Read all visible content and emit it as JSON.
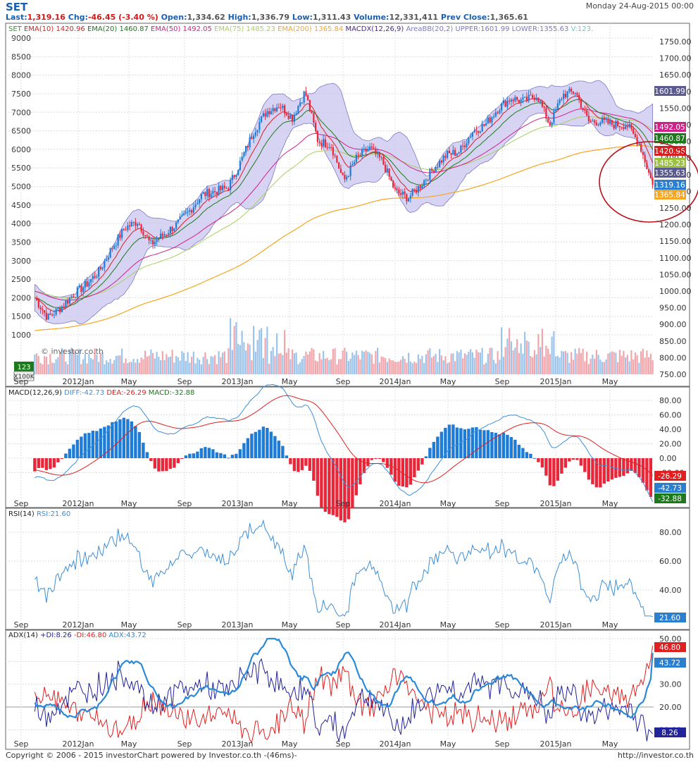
{
  "header": {
    "symbol": "SET",
    "date": "Monday 24-Aug-2015 00:00",
    "stats_text": "Last:1,319.16 Chg:-46.45 (-3.40 %)  Open:1,334.62  High:1,336.79  Low:1,311.43  Volume:12,331,411  Prev Close:1,365.61",
    "last": "1,319.16",
    "chg": "-46.45 (-3.40 %)",
    "open": "1,334.62",
    "high": "1,336.79",
    "low": "1,311.43",
    "volume": "12,331,411",
    "prev_close": "1,365.61"
  },
  "footer": {
    "left": "Copyright © 2006 - 2015 investorChart powered by Investor.co.th -(46ms)-",
    "right": "http://investor.co.th"
  },
  "watermark": "© investor.co.th",
  "colors": {
    "up": "#1e7bd6",
    "down": "#e8283a",
    "ema10": "#d82020",
    "ema20": "#1c7a1c",
    "ema50": "#d0208a",
    "ema75": "#a8d060",
    "ema200": "#f5a623",
    "bb_fill": "#c9c6ef",
    "bb_line": "#7c78c8",
    "rsi": "#3d8fd6",
    "adx": "#2b8ad8",
    "plusdi": "#23239a",
    "minusdi": "#e02020"
  },
  "chart_data": [
    {
      "type": "candlestick",
      "title": "SET",
      "legend": [
        {
          "label": "SET",
          "color": "#2e9a2e"
        },
        {
          "label": "EMA(10) 1420.96",
          "color": "#d82020"
        },
        {
          "label": "EMA(20) 1460.87",
          "color": "#1c7a1c"
        },
        {
          "label": "EMA(50) 1492.05",
          "color": "#d0208a"
        },
        {
          "label": "EMA(75) 1485.23",
          "color": "#a8d060"
        },
        {
          "label": "EMA(200) 1365.84",
          "color": "#f5a623"
        },
        {
          "label": "MACDX(12,26,9)",
          "color": "#4a2a8a"
        },
        {
          "label": "AreaBB(20,2) UPPER:1601.99 LOWER:1355.63",
          "color": "#7c78c8"
        },
        {
          "label": "V:123.",
          "color": "#7cc0c0"
        }
      ],
      "x_ticks": [
        "Sep",
        "2012Jan",
        "May",
        "Sep",
        "2013Jan",
        "May",
        "Sep",
        "2014Jan",
        "May",
        "Sep",
        "2015Jan",
        "May"
      ],
      "y_right_ticks": [
        750,
        800,
        850,
        900,
        950,
        1000,
        1050,
        1100,
        1150,
        1200,
        1250,
        1300,
        1350,
        1400,
        1450,
        1500,
        1550,
        1600,
        1650,
        1700,
        1750
      ],
      "y_left_volume_ticks": [
        1000,
        1500,
        2000,
        2500,
        3000,
        3500,
        4000,
        4500,
        5000,
        5500,
        6000,
        6500,
        7000,
        7500,
        8000,
        8500,
        9000
      ],
      "volume_unit": "X100K",
      "volume_last": "123",
      "close_series_approx": [
        {
          "x": "2011-08",
          "y": 980
        },
        {
          "x": "2011-09",
          "y": 920
        },
        {
          "x": "2011-10",
          "y": 950
        },
        {
          "x": "2011-11",
          "y": 990
        },
        {
          "x": "2011-12",
          "y": 1020
        },
        {
          "x": "2012-01",
          "y": 1060
        },
        {
          "x": "2012-02",
          "y": 1130
        },
        {
          "x": "2012-03",
          "y": 1190
        },
        {
          "x": "2012-04",
          "y": 1210
        },
        {
          "x": "2012-05",
          "y": 1140
        },
        {
          "x": "2012-06",
          "y": 1170
        },
        {
          "x": "2012-07",
          "y": 1200
        },
        {
          "x": "2012-08",
          "y": 1240
        },
        {
          "x": "2012-09",
          "y": 1290
        },
        {
          "x": "2012-10",
          "y": 1300
        },
        {
          "x": "2012-11",
          "y": 1310
        },
        {
          "x": "2012-12",
          "y": 1390
        },
        {
          "x": "2013-01",
          "y": 1480
        },
        {
          "x": "2013-02",
          "y": 1540
        },
        {
          "x": "2013-03",
          "y": 1560
        },
        {
          "x": "2013-04",
          "y": 1520
        },
        {
          "x": "2013-05",
          "y": 1600
        },
        {
          "x": "2013-06",
          "y": 1450
        },
        {
          "x": "2013-07",
          "y": 1440
        },
        {
          "x": "2013-08",
          "y": 1330
        },
        {
          "x": "2013-09",
          "y": 1400
        },
        {
          "x": "2013-10",
          "y": 1430
        },
        {
          "x": "2013-11",
          "y": 1390
        },
        {
          "x": "2013-12",
          "y": 1300
        },
        {
          "x": "2014-01",
          "y": 1280
        },
        {
          "x": "2014-02",
          "y": 1320
        },
        {
          "x": "2014-03",
          "y": 1370
        },
        {
          "x": "2014-04",
          "y": 1410
        },
        {
          "x": "2014-05",
          "y": 1420
        },
        {
          "x": "2014-06",
          "y": 1480
        },
        {
          "x": "2014-07",
          "y": 1500
        },
        {
          "x": "2014-08",
          "y": 1550
        },
        {
          "x": "2014-09",
          "y": 1580
        },
        {
          "x": "2014-10",
          "y": 1570
        },
        {
          "x": "2014-11",
          "y": 1590
        },
        {
          "x": "2014-12",
          "y": 1500
        },
        {
          "x": "2015-01",
          "y": 1590
        },
        {
          "x": "2015-02",
          "y": 1600
        },
        {
          "x": "2015-03",
          "y": 1510
        },
        {
          "x": "2015-04",
          "y": 1510
        },
        {
          "x": "2015-05",
          "y": 1500
        },
        {
          "x": "2015-06",
          "y": 1500
        },
        {
          "x": "2015-07",
          "y": 1440
        },
        {
          "x": "2015-08",
          "y": 1319
        }
      ],
      "price_tags": [
        {
          "value": "1601.99",
          "color": "#5b5b8f"
        },
        {
          "value": "1492.05",
          "color": "#d0208a"
        },
        {
          "value": "1460.87",
          "color": "#1c7a1c"
        },
        {
          "value": "1420.96",
          "color": "#d82020"
        },
        {
          "value": "1485.23",
          "color": "#9cc040"
        },
        {
          "value": "1355.63",
          "color": "#5b5b8f"
        },
        {
          "value": "1319.16",
          "color": "#2a7fd0"
        },
        {
          "value": "1365.84",
          "color": "#f5a623"
        }
      ]
    },
    {
      "type": "bar+line",
      "title": "MACD(12,26,9)",
      "legend": [
        {
          "label": "MACD(12,26,9)",
          "color": "#222222"
        },
        {
          "label": "DIFF:-42.73",
          "color": "#3d8fd6"
        },
        {
          "label": "DEA:-26.29",
          "color": "#e02020"
        },
        {
          "label": "MACD:-32.88",
          "color": "#1c7a1c"
        }
      ],
      "y_ticks": [
        -20,
        0,
        20,
        40,
        60,
        80
      ],
      "tags": [
        {
          "value": "-26.29",
          "color": "#e02020"
        },
        {
          "value": "-42.73",
          "color": "#2a7fd0"
        },
        {
          "value": "-32.88",
          "color": "#1c7a1c"
        }
      ]
    },
    {
      "type": "line",
      "title": "RSI(14)",
      "legend": [
        {
          "label": "RSI(14)",
          "color": "#222222"
        },
        {
          "label": "RSI:21.60",
          "color": "#3d8fd6"
        }
      ],
      "y_ticks": [
        40,
        60,
        80
      ],
      "tags": [
        {
          "value": "21.60",
          "color": "#2a7fd0"
        }
      ]
    },
    {
      "type": "line",
      "title": "ADX(14)",
      "legend": [
        {
          "label": "ADX(14)",
          "color": "#222222"
        },
        {
          "label": "+DI:8.26",
          "color": "#23239a"
        },
        {
          "label": "-DI:46.80",
          "color": "#e02020"
        },
        {
          "label": "ADX:43.72",
          "color": "#2b8ad8"
        }
      ],
      "y_ticks": [
        10,
        20,
        30,
        40,
        50
      ],
      "tags": [
        {
          "value": "46.80",
          "color": "#e02020"
        },
        {
          "value": "43.72",
          "color": "#2a7fd0"
        },
        {
          "value": "8.26",
          "color": "#23239a"
        }
      ]
    }
  ]
}
